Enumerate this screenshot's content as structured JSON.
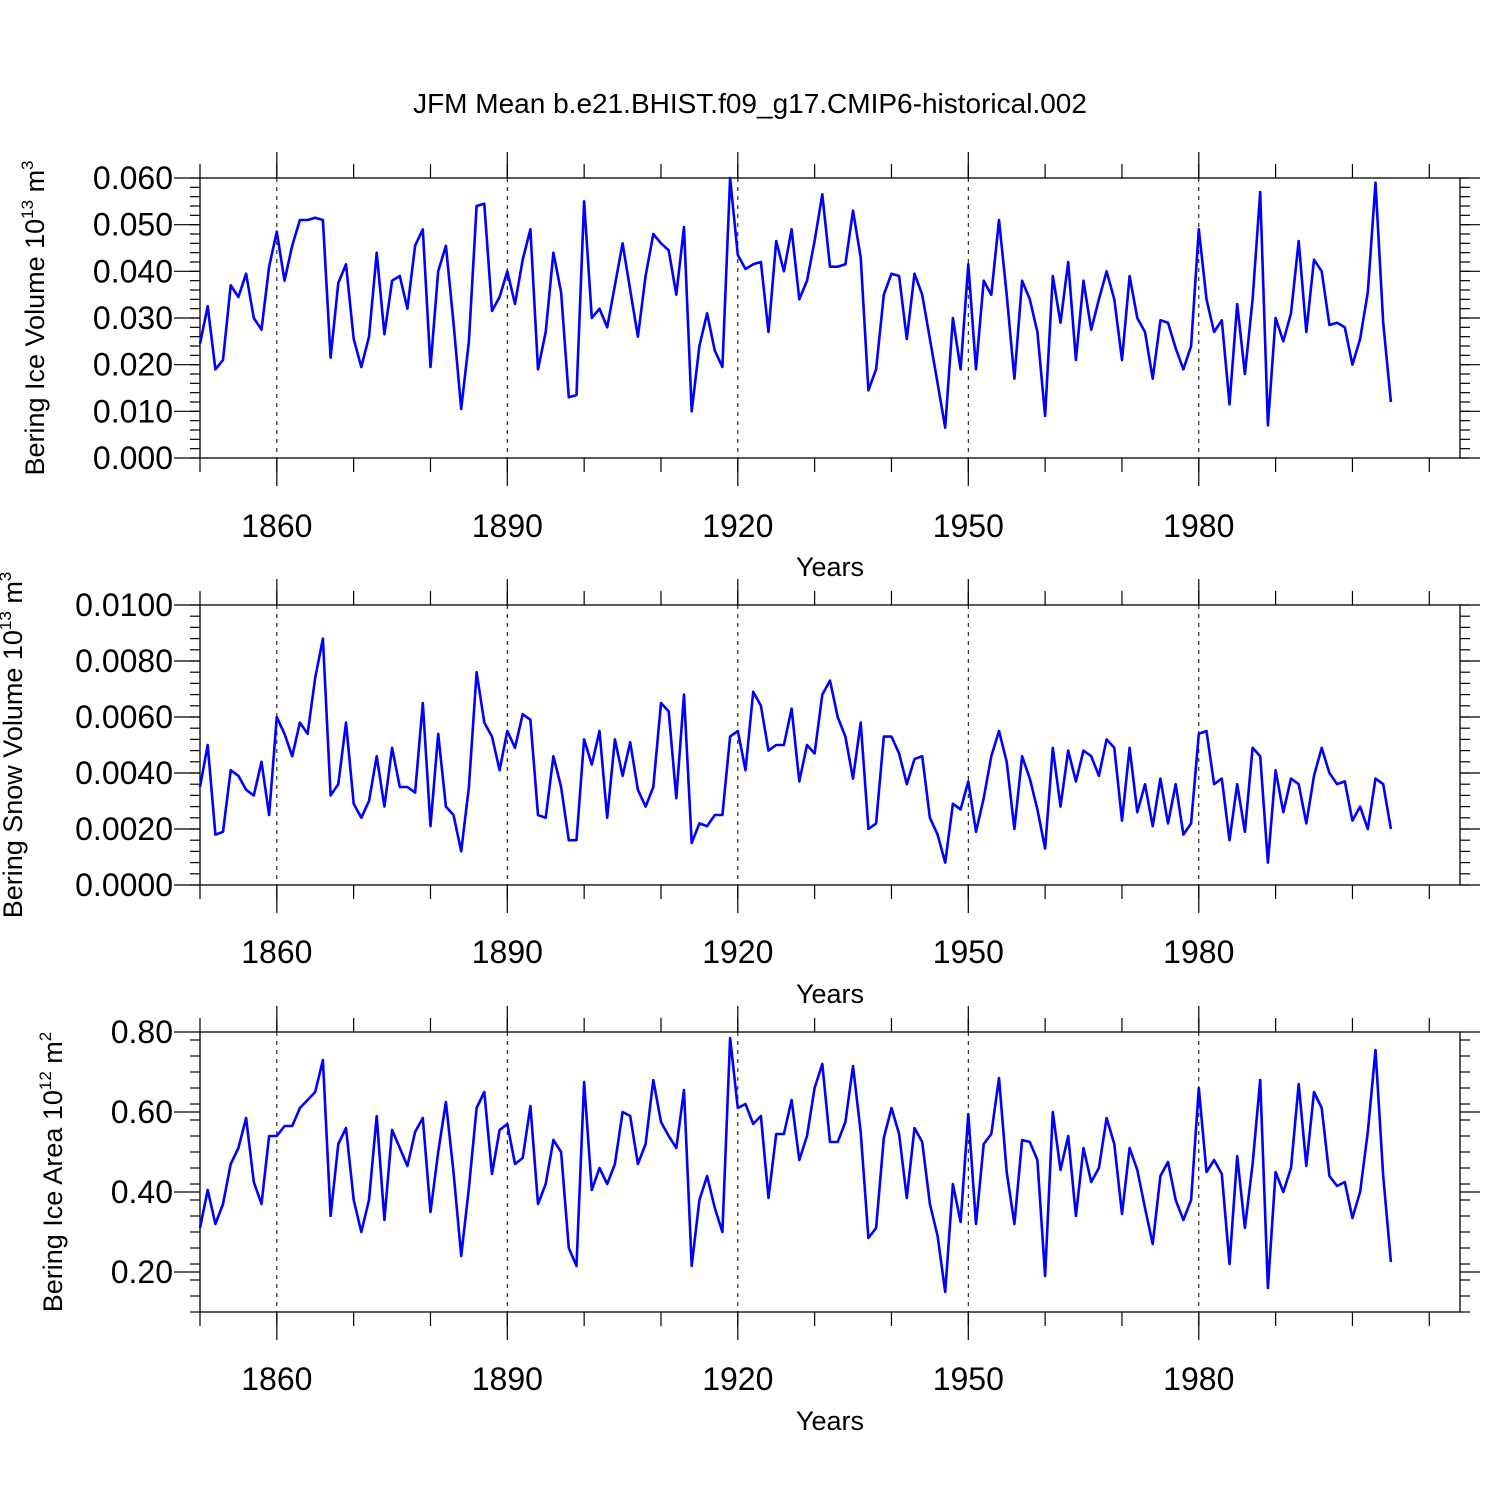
{
  "title": "JFM Mean b.e21.BHIST.f09_g17.CMIP6-historical.002",
  "chart_data": [
    {
      "type": "line",
      "id": "ice-volume",
      "ylabel_main": "Bering Ice Volume 10",
      "ylabel_exp": "13",
      "ylabel_unit": " m",
      "ylabel_unit_exp": "3",
      "xlabel": "Years",
      "xlim": [
        1850,
        2014
      ],
      "ylim": [
        0.0,
        0.06
      ],
      "xticks": [
        1860,
        1890,
        1920,
        1950,
        1980
      ],
      "xtick_labels": [
        "1860",
        "1890",
        "1920",
        "1950",
        "1980"
      ],
      "yticks": [
        0.0,
        0.01,
        0.02,
        0.03,
        0.04,
        0.05,
        0.06
      ],
      "ytick_labels": [
        "0.000",
        "0.010",
        "0.020",
        "0.030",
        "0.040",
        "0.050",
        "0.060"
      ],
      "line_color": "#0000ff",
      "x_start": 1850,
      "values": [
        0.0245,
        0.0325,
        0.019,
        0.021,
        0.037,
        0.0345,
        0.0395,
        0.03,
        0.0275,
        0.041,
        0.0485,
        0.038,
        0.0455,
        0.051,
        0.051,
        0.0515,
        0.051,
        0.0215,
        0.0375,
        0.0415,
        0.0255,
        0.0195,
        0.026,
        0.044,
        0.0265,
        0.038,
        0.039,
        0.032,
        0.0455,
        0.049,
        0.0195,
        0.04,
        0.0455,
        0.029,
        0.0105,
        0.025,
        0.054,
        0.0545,
        0.0315,
        0.0345,
        0.04,
        0.033,
        0.0425,
        0.049,
        0.019,
        0.027,
        0.044,
        0.0355,
        0.013,
        0.0135,
        0.055,
        0.03,
        0.032,
        0.028,
        0.037,
        0.046,
        0.036,
        0.026,
        0.039,
        0.048,
        0.046,
        0.0445,
        0.035,
        0.0495,
        0.01,
        0.024,
        0.031,
        0.023,
        0.0195,
        0.06,
        0.0435,
        0.0405,
        0.0415,
        0.042,
        0.027,
        0.0465,
        0.04,
        0.049,
        0.034,
        0.038,
        0.0465,
        0.0565,
        0.041,
        0.041,
        0.0415,
        0.053,
        0.043,
        0.0145,
        0.019,
        0.035,
        0.0395,
        0.039,
        0.0255,
        0.0395,
        0.035,
        0.0255,
        0.016,
        0.0065,
        0.03,
        0.019,
        0.0415,
        0.019,
        0.038,
        0.035,
        0.051,
        0.035,
        0.017,
        0.038,
        0.034,
        0.027,
        0.009,
        0.039,
        0.029,
        0.042,
        0.021,
        0.038,
        0.0275,
        0.034,
        0.04,
        0.034,
        0.021,
        0.039,
        0.03,
        0.027,
        0.017,
        0.0295,
        0.029,
        0.0235,
        0.019,
        0.024,
        0.049,
        0.034,
        0.027,
        0.0295,
        0.0115,
        0.033,
        0.018,
        0.034,
        0.057,
        0.007,
        0.03,
        0.025,
        0.031,
        0.0465,
        0.027,
        0.0425,
        0.04,
        0.0285,
        0.029,
        0.028,
        0.02,
        0.0255,
        0.0355,
        0.059,
        0.029,
        0.012
      ]
    },
    {
      "type": "line",
      "id": "snow-volume",
      "ylabel_main": "Bering Snow Volume 10",
      "ylabel_exp": "13",
      "ylabel_unit": " m",
      "ylabel_unit_exp": "3",
      "xlabel": "Years",
      "xlim": [
        1850,
        2014
      ],
      "ylim": [
        0.0,
        0.01
      ],
      "xticks": [
        1860,
        1890,
        1920,
        1950,
        1980
      ],
      "xtick_labels": [
        "1860",
        "1890",
        "1920",
        "1950",
        "1980"
      ],
      "yticks": [
        0.0,
        0.002,
        0.004,
        0.006,
        0.008,
        0.01
      ],
      "ytick_labels": [
        "0.0000",
        "0.0020",
        "0.0040",
        "0.0060",
        "0.0080",
        "0.0100"
      ],
      "line_color": "#0000ff",
      "x_start": 1850,
      "values": [
        0.0035,
        0.005,
        0.0018,
        0.0019,
        0.0041,
        0.0039,
        0.0034,
        0.0032,
        0.0044,
        0.0025,
        0.006,
        0.0054,
        0.0046,
        0.0058,
        0.0054,
        0.0074,
        0.0088,
        0.0032,
        0.0036,
        0.0058,
        0.0029,
        0.0024,
        0.003,
        0.0046,
        0.0028,
        0.0049,
        0.0035,
        0.0035,
        0.0033,
        0.0065,
        0.0021,
        0.0054,
        0.0028,
        0.0025,
        0.0012,
        0.0035,
        0.0076,
        0.0058,
        0.0053,
        0.0041,
        0.0055,
        0.0049,
        0.0061,
        0.0059,
        0.0025,
        0.0024,
        0.0046,
        0.0035,
        0.0016,
        0.0016,
        0.0052,
        0.0043,
        0.0055,
        0.0024,
        0.0052,
        0.0039,
        0.0051,
        0.0034,
        0.0028,
        0.0035,
        0.0065,
        0.0062,
        0.0031,
        0.0068,
        0.0015,
        0.0022,
        0.0021,
        0.0025,
        0.0025,
        0.0053,
        0.0055,
        0.0041,
        0.0069,
        0.0064,
        0.0048,
        0.005,
        0.005,
        0.0063,
        0.0037,
        0.005,
        0.0047,
        0.0068,
        0.0073,
        0.006,
        0.0053,
        0.0038,
        0.0058,
        0.002,
        0.0022,
        0.0053,
        0.0053,
        0.0047,
        0.0036,
        0.0045,
        0.0046,
        0.0024,
        0.0018,
        0.0008,
        0.0029,
        0.0027,
        0.0037,
        0.0019,
        0.0031,
        0.0046,
        0.0055,
        0.0044,
        0.002,
        0.0046,
        0.0038,
        0.0027,
        0.0013,
        0.0049,
        0.0028,
        0.0048,
        0.0037,
        0.0048,
        0.0046,
        0.0039,
        0.0052,
        0.0049,
        0.0023,
        0.0049,
        0.0026,
        0.0036,
        0.0021,
        0.0038,
        0.0022,
        0.0036,
        0.0018,
        0.0022,
        0.0054,
        0.0055,
        0.0036,
        0.0038,
        0.0016,
        0.0036,
        0.0019,
        0.0049,
        0.0046,
        0.0008,
        0.0041,
        0.0026,
        0.0038,
        0.0036,
        0.0022,
        0.0039,
        0.0049,
        0.004,
        0.0036,
        0.0037,
        0.0023,
        0.0028,
        0.002,
        0.0038,
        0.0036,
        0.002
      ]
    },
    {
      "type": "line",
      "id": "ice-area",
      "ylabel_main": "Bering Ice Area 10",
      "ylabel_exp": "12",
      "ylabel_unit": " m",
      "ylabel_unit_exp": "2",
      "xlabel": "Years",
      "xlim": [
        1850,
        2014
      ],
      "ylim": [
        0.1,
        0.8
      ],
      "xticks": [
        1860,
        1890,
        1920,
        1950,
        1980
      ],
      "xtick_labels": [
        "1860",
        "1890",
        "1920",
        "1950",
        "1980"
      ],
      "yticks": [
        0.2,
        0.4,
        0.6,
        0.8
      ],
      "ytick_labels": [
        "0.20",
        "0.40",
        "0.60",
        "0.80"
      ],
      "line_color": "#0000ff",
      "x_start": 1850,
      "values": [
        0.31,
        0.405,
        0.32,
        0.37,
        0.47,
        0.51,
        0.585,
        0.425,
        0.37,
        0.54,
        0.54,
        0.565,
        0.565,
        0.61,
        0.63,
        0.65,
        0.73,
        0.34,
        0.52,
        0.56,
        0.38,
        0.3,
        0.38,
        0.59,
        0.33,
        0.555,
        0.51,
        0.465,
        0.55,
        0.585,
        0.35,
        0.5,
        0.625,
        0.45,
        0.24,
        0.41,
        0.61,
        0.65,
        0.445,
        0.555,
        0.57,
        0.47,
        0.485,
        0.615,
        0.37,
        0.42,
        0.53,
        0.5,
        0.26,
        0.215,
        0.675,
        0.405,
        0.46,
        0.42,
        0.47,
        0.6,
        0.59,
        0.47,
        0.52,
        0.68,
        0.575,
        0.54,
        0.51,
        0.655,
        0.215,
        0.38,
        0.44,
        0.36,
        0.3,
        0.785,
        0.61,
        0.62,
        0.57,
        0.59,
        0.385,
        0.545,
        0.545,
        0.63,
        0.48,
        0.54,
        0.66,
        0.72,
        0.525,
        0.525,
        0.575,
        0.715,
        0.55,
        0.285,
        0.31,
        0.535,
        0.61,
        0.545,
        0.385,
        0.56,
        0.525,
        0.37,
        0.29,
        0.15,
        0.42,
        0.325,
        0.595,
        0.32,
        0.52,
        0.545,
        0.685,
        0.45,
        0.32,
        0.53,
        0.525,
        0.48,
        0.19,
        0.6,
        0.455,
        0.54,
        0.34,
        0.51,
        0.425,
        0.46,
        0.585,
        0.52,
        0.345,
        0.51,
        0.455,
        0.36,
        0.27,
        0.44,
        0.475,
        0.38,
        0.33,
        0.38,
        0.66,
        0.45,
        0.48,
        0.445,
        0.22,
        0.49,
        0.31,
        0.47,
        0.68,
        0.16,
        0.45,
        0.4,
        0.46,
        0.67,
        0.465,
        0.65,
        0.61,
        0.44,
        0.415,
        0.425,
        0.335,
        0.4,
        0.55,
        0.755,
        0.44,
        0.225
      ]
    }
  ]
}
